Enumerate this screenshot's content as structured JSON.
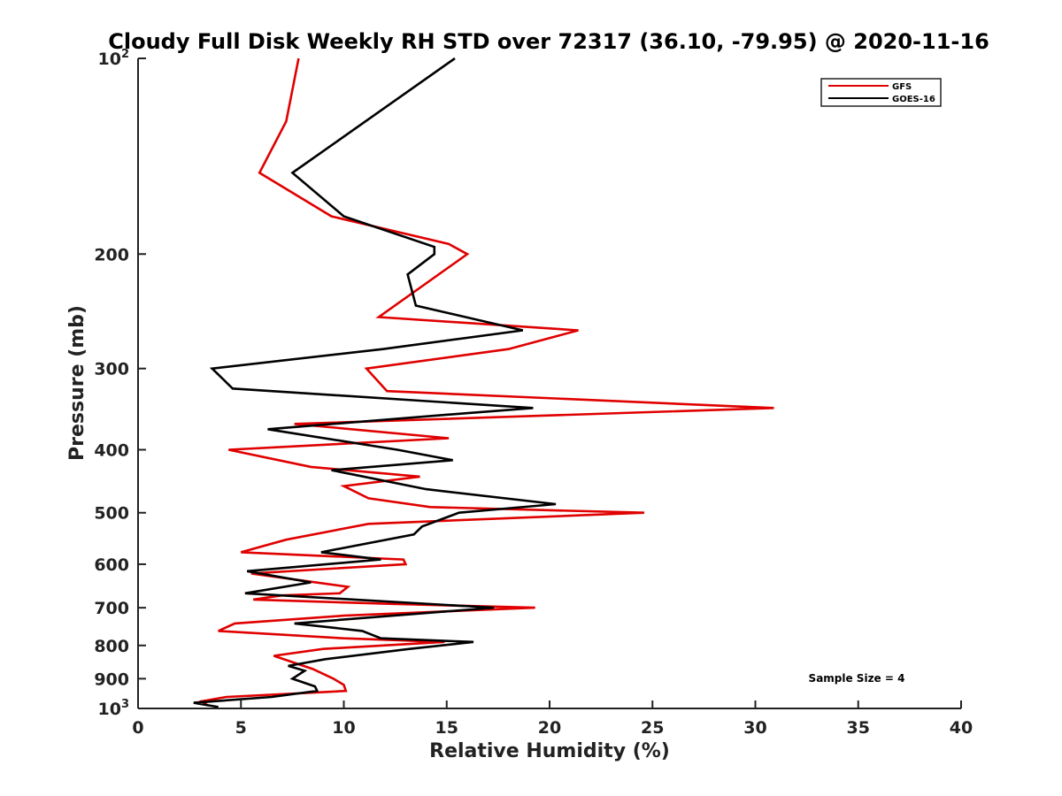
{
  "chart_data": {
    "type": "line",
    "title": "Cloudy Full Disk Weekly RH STD over 72317 (36.10, -79.95) @ 2020-11-16",
    "xlabel": "Relative Humidity (%)",
    "ylabel": "Pressure (mb)",
    "xlim": [
      0,
      40
    ],
    "ylim": [
      100,
      1000
    ],
    "y_scale": "log",
    "y_reversed": true,
    "grid": false,
    "legend_position": "top-right",
    "x_ticks": [
      "0",
      "5",
      "10",
      "15",
      "20",
      "25",
      "30",
      "35",
      "40"
    ],
    "y_ticks": [
      {
        "value": 100,
        "base": "10",
        "exp": "2"
      },
      {
        "value": 200,
        "label": "200"
      },
      {
        "value": 300,
        "label": "300"
      },
      {
        "value": 400,
        "label": "400"
      },
      {
        "value": 500,
        "label": "500"
      },
      {
        "value": 600,
        "label": "600"
      },
      {
        "value": 700,
        "label": "700"
      },
      {
        "value": 800,
        "label": "800"
      },
      {
        "value": 900,
        "label": "900"
      },
      {
        "value": 1000,
        "base": "10",
        "exp": "3"
      }
    ],
    "series": [
      {
        "name": "GFS",
        "color": "#e00000",
        "points": [
          [
            7.8,
            100
          ],
          [
            7.2,
            125
          ],
          [
            5.9,
            150
          ],
          [
            9.4,
            175
          ],
          [
            15.1,
            193
          ],
          [
            16.0,
            200
          ],
          [
            11.7,
            250
          ],
          [
            21.4,
            262
          ],
          [
            18.0,
            280
          ],
          [
            11.1,
            300
          ],
          [
            12.1,
            325
          ],
          [
            30.9,
            345
          ],
          [
            7.6,
            365
          ],
          [
            15.1,
            384
          ],
          [
            4.4,
            400
          ],
          [
            8.4,
            425
          ],
          [
            13.7,
            440
          ],
          [
            10.0,
            455
          ],
          [
            11.2,
            475
          ],
          [
            14.2,
            490
          ],
          [
            24.6,
            500
          ],
          [
            11.2,
            520
          ],
          [
            7.2,
            550
          ],
          [
            5.0,
            575
          ],
          [
            12.9,
            590
          ],
          [
            13.0,
            600
          ],
          [
            5.5,
            620
          ],
          [
            10.2,
            650
          ],
          [
            9.8,
            665
          ],
          [
            7.0,
            670
          ],
          [
            5.6,
            680
          ],
          [
            12.0,
            690
          ],
          [
            19.3,
            700
          ],
          [
            10.0,
            720
          ],
          [
            4.7,
            740
          ],
          [
            3.9,
            760
          ],
          [
            10.0,
            780
          ],
          [
            14.9,
            790
          ],
          [
            9.0,
            810
          ],
          [
            6.6,
            830
          ],
          [
            8.5,
            870
          ],
          [
            9.5,
            900
          ],
          [
            10.0,
            920
          ],
          [
            10.1,
            940
          ],
          [
            4.3,
            960
          ],
          [
            3.1,
            975
          ],
          [
            3.4,
            990
          ]
        ]
      },
      {
        "name": "GOES-16",
        "color": "#000000",
        "points": [
          [
            15.4,
            100
          ],
          [
            7.5,
            150
          ],
          [
            10.0,
            175
          ],
          [
            14.4,
            195
          ],
          [
            14.4,
            200
          ],
          [
            13.1,
            215
          ],
          [
            13.5,
            240
          ],
          [
            18.7,
            262
          ],
          [
            11.9,
            280
          ],
          [
            3.6,
            300
          ],
          [
            4.6,
            322
          ],
          [
            19.2,
            345
          ],
          [
            14.2,
            355
          ],
          [
            6.3,
            372
          ],
          [
            12.6,
            400
          ],
          [
            15.3,
            415
          ],
          [
            9.4,
            430
          ],
          [
            14.0,
            460
          ],
          [
            20.3,
            485
          ],
          [
            15.6,
            500
          ],
          [
            13.8,
            525
          ],
          [
            13.4,
            540
          ],
          [
            8.9,
            575
          ],
          [
            11.8,
            590
          ],
          [
            5.3,
            615
          ],
          [
            8.4,
            640
          ],
          [
            5.2,
            665
          ],
          [
            17.3,
            700
          ],
          [
            7.6,
            740
          ],
          [
            10.9,
            760
          ],
          [
            11.8,
            780
          ],
          [
            16.3,
            790
          ],
          [
            13.2,
            810
          ],
          [
            9.1,
            840
          ],
          [
            7.3,
            860
          ],
          [
            8.1,
            875
          ],
          [
            7.5,
            900
          ],
          [
            8.6,
            925
          ],
          [
            8.7,
            940
          ],
          [
            6.5,
            960
          ],
          [
            2.7,
            980
          ],
          [
            3.9,
            995
          ]
        ]
      }
    ],
    "annotations": [
      "Sample Size = 4"
    ]
  }
}
